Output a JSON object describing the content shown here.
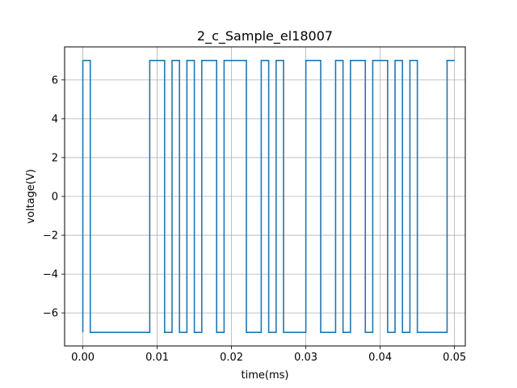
{
  "chart_data": {
    "type": "line",
    "title": "2_c_Sample_el18007",
    "xlabel": "time(ms)",
    "ylabel": "voltage(V)",
    "xlim": [
      -0.00245,
      0.05145
    ],
    "ylim": [
      -7.7,
      7.7
    ],
    "xticks": [
      0.0,
      0.01,
      0.02,
      0.03,
      0.04,
      0.05
    ],
    "xtick_labels": [
      "0.00",
      "0.01",
      "0.02",
      "0.03",
      "0.04",
      "0.05"
    ],
    "yticks": [
      -6,
      -4,
      -2,
      0,
      2,
      4,
      6
    ],
    "ytick_labels": [
      "−6",
      "−4",
      "−2",
      "0",
      "2",
      "4",
      "6"
    ],
    "grid": true,
    "line_color": "#1f77b4",
    "series": [
      {
        "style": "step",
        "x": [
          0.0,
          0.001,
          0.002,
          0.003,
          0.004,
          0.005,
          0.006,
          0.007,
          0.008,
          0.009,
          0.01,
          0.011,
          0.012,
          0.013,
          0.014,
          0.015,
          0.016,
          0.017,
          0.018,
          0.019,
          0.02,
          0.021,
          0.022,
          0.023,
          0.024,
          0.025,
          0.026,
          0.027,
          0.028,
          0.029,
          0.03,
          0.031,
          0.032,
          0.033,
          0.034,
          0.035,
          0.036,
          0.037,
          0.038,
          0.039,
          0.04,
          0.041,
          0.042,
          0.043,
          0.044,
          0.045,
          0.046,
          0.047,
          0.048,
          0.049
        ],
        "y": [
          7,
          -7,
          -7,
          -7,
          -7,
          -7,
          -7,
          -7,
          -7,
          7,
          7,
          -7,
          7,
          -7,
          7,
          -7,
          7,
          7,
          -7,
          7,
          7,
          7,
          -7,
          -7,
          7,
          -7,
          7,
          -7,
          -7,
          -7,
          7,
          7,
          -7,
          -7,
          7,
          -7,
          7,
          7,
          -7,
          7,
          7,
          -7,
          7,
          -7,
          7,
          -7,
          -7,
          -7,
          -7,
          7
        ]
      }
    ]
  }
}
